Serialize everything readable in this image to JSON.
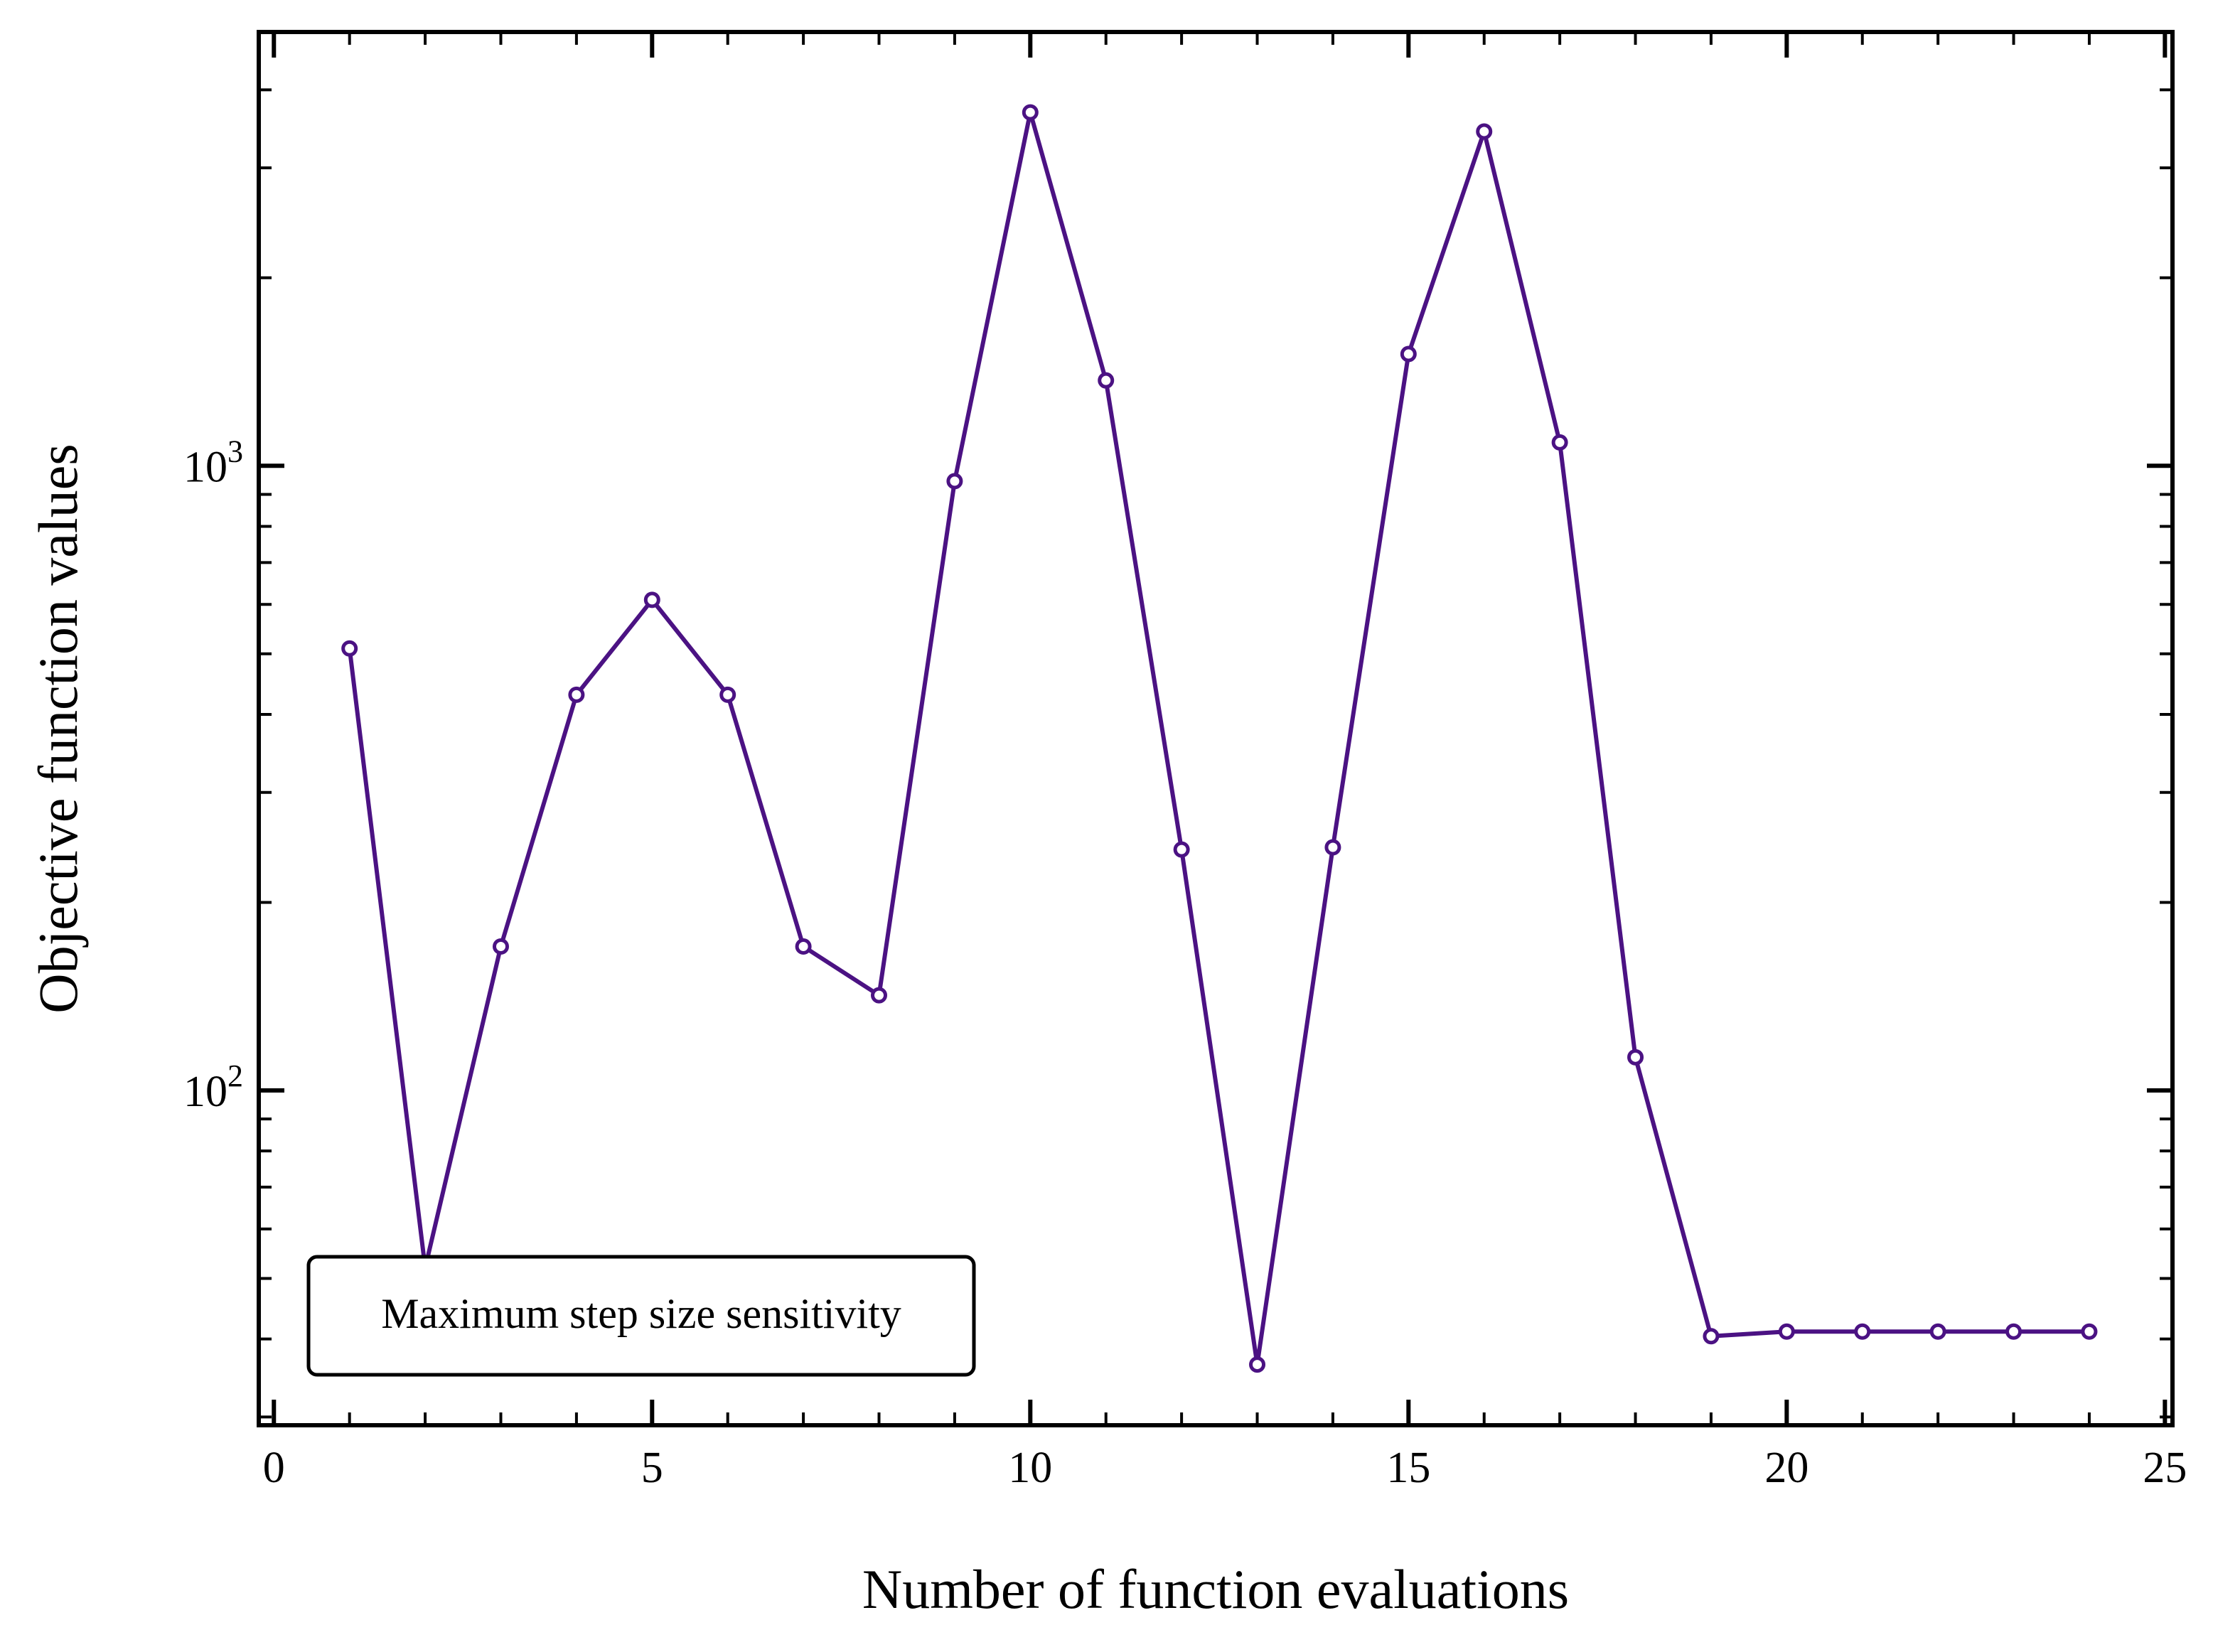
{
  "chart_data": {
    "type": "line",
    "title": "",
    "xlabel": "Number of function evaluations",
    "ylabel": "Objective function values",
    "xlim": [
      -0.2,
      25.1
    ],
    "ylim": [
      29.1,
      4950
    ],
    "yscale": "log",
    "grid": false,
    "xticks": [
      0,
      5,
      10,
      15,
      20,
      25
    ],
    "xtick_labels": [
      "0",
      "5",
      "10",
      "15",
      "20",
      "25"
    ],
    "yticks": [
      100,
      1000
    ],
    "ytick_labels": [
      {
        "base": "10",
        "exp": "2"
      },
      {
        "base": "10",
        "exp": "3"
      }
    ],
    "legend": {
      "placement": "lower-left",
      "text": "Maximum step size sensitivity"
    },
    "series": [
      {
        "color": "#4b1283",
        "marker": "hollow-circle",
        "x": [
          1,
          2,
          3,
          4,
          5,
          6,
          7,
          8,
          9,
          10,
          11,
          12,
          13,
          14,
          15,
          16,
          17,
          18,
          19,
          20,
          21,
          22,
          23,
          24
        ],
        "y": [
          510,
          52,
          170,
          430,
          610,
          430,
          170,
          142,
          945,
          3680,
          1370,
          243,
          36.4,
          245,
          1510,
          3430,
          1090,
          113,
          40.4,
          41.1,
          41.1,
          41.1,
          41.1,
          41.1
        ]
      }
    ]
  }
}
